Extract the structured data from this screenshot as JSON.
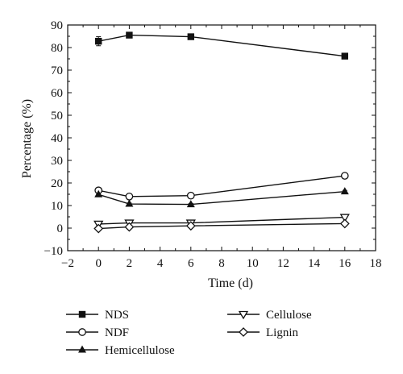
{
  "chart_data": {
    "type": "line",
    "xlabel": "Time (d)",
    "ylabel": "Percentage (%)",
    "xlim": [
      -2,
      18
    ],
    "ylim": [
      -10,
      90
    ],
    "x_ticks": [
      "−2",
      "0",
      "2",
      "4",
      "6",
      "8",
      "10",
      "12",
      "14",
      "16",
      "18"
    ],
    "y_ticks": [
      "−10",
      "0",
      "10",
      "20",
      "30",
      "40",
      "50",
      "60",
      "70",
      "80",
      "90"
    ],
    "x": [
      0,
      2,
      6,
      16
    ],
    "series": [
      {
        "name": "NDS",
        "marker": "filled-square",
        "values": [
          82.8,
          85.5,
          84.8,
          76.2
        ],
        "error": [
          2.0,
          0.8,
          0.8,
          0.8
        ]
      },
      {
        "name": "NDF",
        "marker": "open-circle",
        "values": [
          16.7,
          14.0,
          14.4,
          23.2
        ],
        "error": [
          0.8,
          0.5,
          0.5,
          0.6
        ]
      },
      {
        "name": "Hemicellulose",
        "marker": "filled-triangle-up",
        "values": [
          14.9,
          10.7,
          10.5,
          16.2
        ],
        "error": [
          0.6,
          0.4,
          0.4,
          0.5
        ]
      },
      {
        "name": "Cellulose",
        "marker": "open-triangle-down",
        "values": [
          1.8,
          2.3,
          2.3,
          4.8
        ],
        "error": [
          0.3,
          0.3,
          0.3,
          0.3
        ]
      },
      {
        "name": "Lignin",
        "marker": "open-diamond",
        "values": [
          -0.2,
          0.5,
          1.0,
          2.0
        ],
        "error": [
          0.3,
          0.3,
          0.3,
          0.3
        ]
      }
    ],
    "legend_position": "below-plot",
    "grid": false,
    "colors": {
      "line": "#111111",
      "background": "#ffffff"
    }
  }
}
